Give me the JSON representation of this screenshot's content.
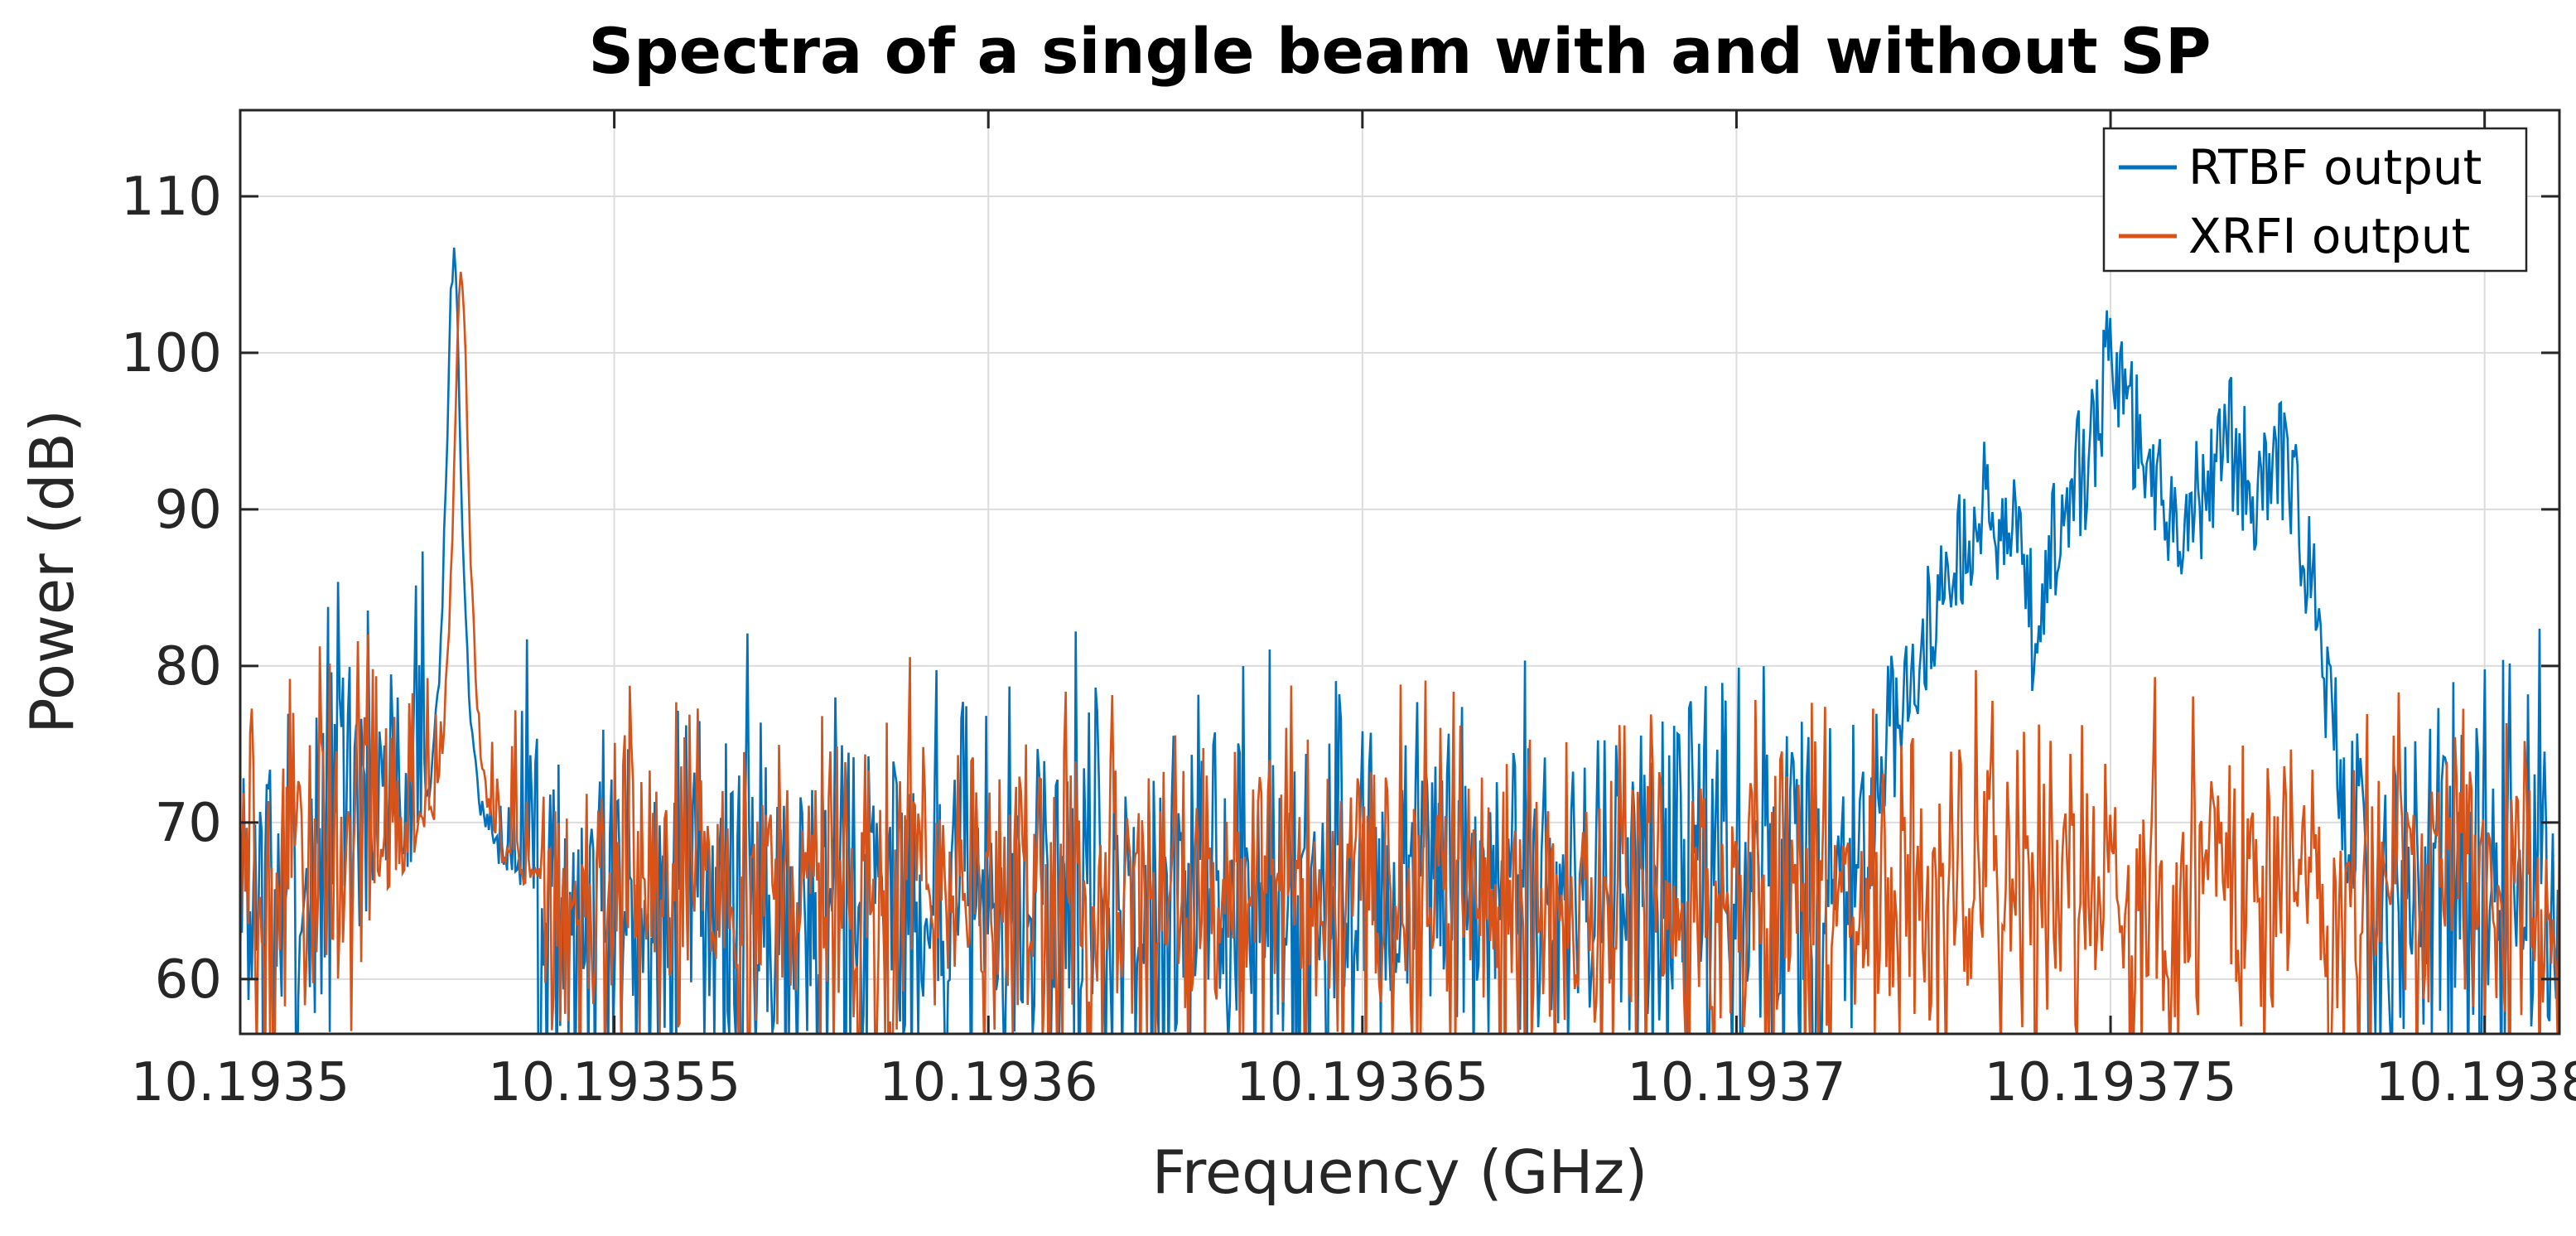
{
  "chart_data": {
    "type": "line",
    "title": "Spectra of a single beam with and without SP",
    "xlabel": "Frequency (GHz)",
    "ylabel": "Power (dB)",
    "xlim": [
      10.1935,
      10.19381
    ],
    "ylim": [
      56.5,
      115.5
    ],
    "grid": true,
    "legend_position": "top-right",
    "x_ticks": [
      10.1935,
      10.19355,
      10.1936,
      10.19365,
      10.1937,
      10.19375,
      10.1938
    ],
    "x_tick_labels": [
      "10.1935",
      "10.19355",
      "10.1936",
      "10.19365",
      "10.1937",
      "10.19375",
      "10.1938"
    ],
    "y_ticks": [
      60,
      70,
      80,
      90,
      100,
      110
    ],
    "y_tick_labels": [
      "60",
      "70",
      "80",
      "90",
      "100",
      "110"
    ],
    "series": [
      {
        "name": "RTBF output",
        "color": "#0072BD",
        "noise_baseline": 66,
        "noise_spread": 6.5,
        "features": [
          {
            "kind": "narrow_peak",
            "center": 10.19352853,
            "peak": 106,
            "width": 1.4e-06
          },
          {
            "kind": "raised_shoulder",
            "from": 10.19351,
            "to": 10.19353,
            "level": 72
          },
          {
            "kind": "wide_band",
            "from": 10.193718,
            "to": 10.193782,
            "envelope": [
              [
                10.193718,
                72
              ],
              [
                10.193722,
                80
              ],
              [
                10.193728,
                88
              ],
              [
                10.193733,
                93
              ],
              [
                10.193737,
                91
              ],
              [
                10.19374,
                84
              ],
              [
                10.193743,
                92
              ],
              [
                10.193747,
                96
              ],
              [
                10.19375,
                103
              ],
              [
                10.193753,
                98
              ],
              [
                10.193757,
                94
              ],
              [
                10.19376,
                92
              ],
              [
                10.193763,
                93
              ],
              [
                10.193766,
                97
              ],
              [
                10.193769,
                94
              ],
              [
                10.193772,
                96
              ],
              [
                10.193775,
                92
              ],
              [
                10.193778,
                84
              ],
              [
                10.193782,
                72
              ]
            ]
          }
        ]
      },
      {
        "name": "XRFI output",
        "color": "#D95319",
        "noise_baseline": 66,
        "noise_spread": 5.5,
        "features": [
          {
            "kind": "narrow_peak",
            "center": 10.19352953,
            "peak": 105,
            "width": 1.4e-06
          },
          {
            "kind": "raised_shoulder",
            "from": 10.19351,
            "to": 10.19353,
            "level": 70
          }
        ]
      }
    ]
  }
}
